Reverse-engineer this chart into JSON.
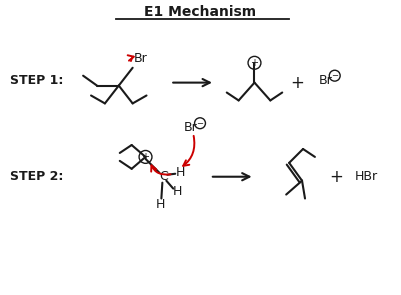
{
  "title": "E1 Mechanism",
  "bg_color": "#ffffff",
  "line_color": "#1a1a1a",
  "red_color": "#cc0000",
  "step1_label": "STEP 1:",
  "step2_label": "STEP 2:"
}
